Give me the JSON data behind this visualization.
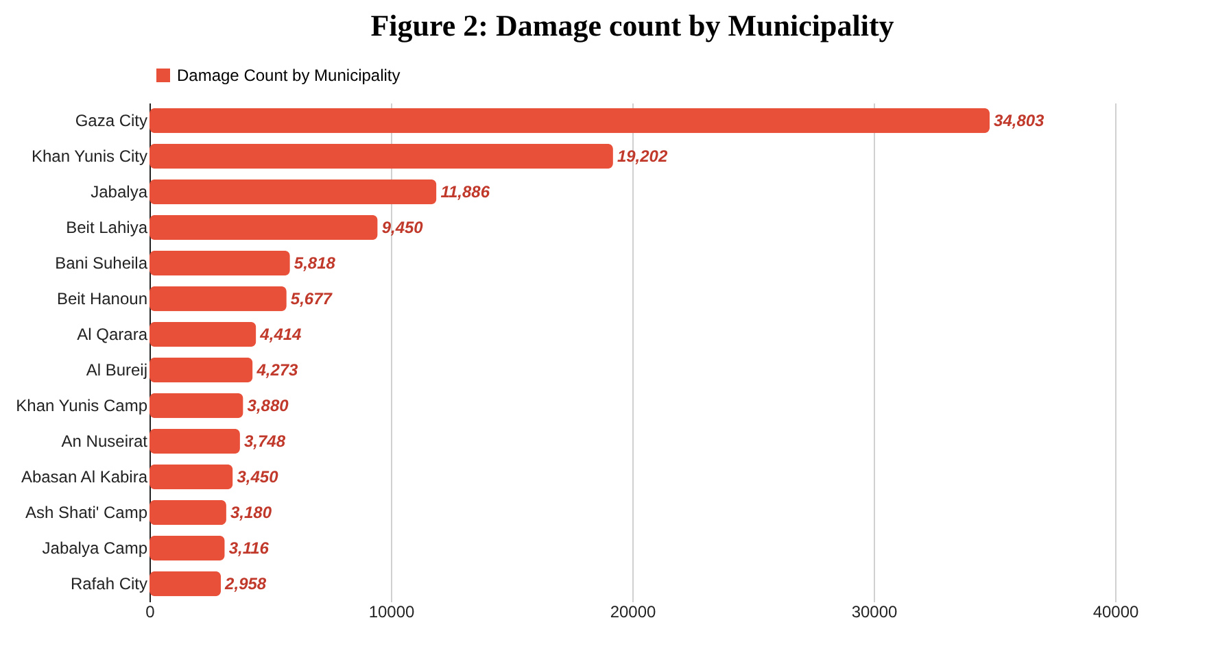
{
  "chart_data": {
    "type": "bar",
    "orientation": "horizontal",
    "title": "Figure 2: Damage count by Municipality",
    "categories": [
      "Gaza City",
      "Khan Yunis City",
      "Jabalya",
      "Beit Lahiya",
      "Bani Suheila",
      "Beit Hanoun",
      "Al Qarara",
      "Al Bureij",
      "Khan Yunis Camp",
      "An Nuseirat",
      "Abasan Al Kabira",
      "Ash Shati' Camp",
      "Jabalya Camp",
      "Rafah City"
    ],
    "series": [
      {
        "name": "Damage Count by Municipality",
        "color": "#e8503a",
        "values": [
          34803,
          19202,
          11886,
          9450,
          5818,
          5677,
          4414,
          4273,
          3880,
          3748,
          3450,
          3180,
          3116,
          2958
        ],
        "value_labels": [
          "34,803",
          "19,202",
          "11,886",
          "9,450",
          "5,818",
          "5,677",
          "4,414",
          "4,273",
          "3,880",
          "3,748",
          "3,450",
          "3,180",
          "3,116",
          "2,958"
        ]
      }
    ],
    "xlim": [
      0,
      40000
    ],
    "xticks": [
      0,
      10000,
      20000,
      30000,
      40000
    ],
    "grid": "x",
    "legend": "top"
  }
}
